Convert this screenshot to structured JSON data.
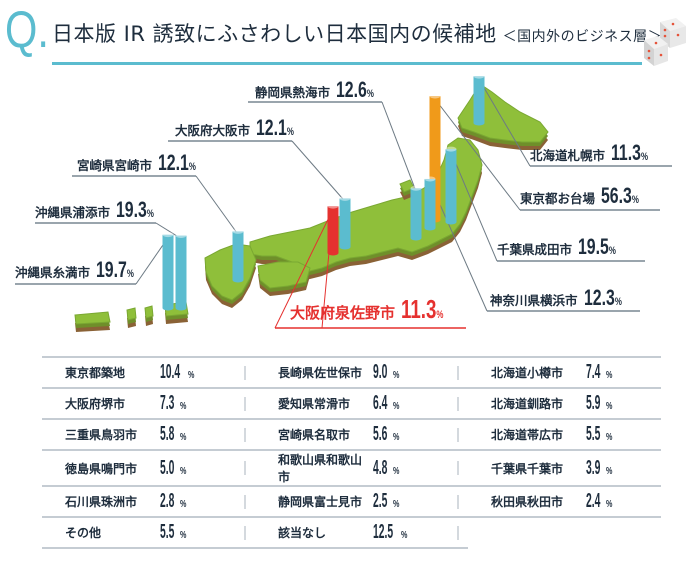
{
  "header": {
    "q_mark": "Q.",
    "title": "日本版 IR 誘致にふさわしい日本国内の候補地",
    "subtitle": "＜国内外のビジネス層＞",
    "dice_icon": "dice-icon",
    "accent_color": "#5bbccf"
  },
  "chart_data": {
    "type": "bar",
    "title": "日本版 IR 誘致にふさわしい日本国内の候補地",
    "subtitle": "＜国内外のビジネス層＞",
    "unit": "%",
    "map_series": [
      {
        "name": "東京都お台場",
        "value": 56.3,
        "display": "56.3",
        "color": "#f09a1a"
      },
      {
        "name": "沖縄県糸満市",
        "value": 19.7,
        "display": "19.7",
        "color": "#5bbccf"
      },
      {
        "name": "千葉県成田市",
        "value": 19.5,
        "display": "19.5",
        "color": "#5bbccf"
      },
      {
        "name": "沖縄県浦添市",
        "value": 19.3,
        "display": "19.3",
        "color": "#5bbccf"
      },
      {
        "name": "静岡県熱海市",
        "value": 12.6,
        "display": "12.6",
        "color": "#5bbccf"
      },
      {
        "name": "神奈川県横浜市",
        "value": 12.3,
        "display": "12.3",
        "color": "#5bbccf"
      },
      {
        "name": "大阪府大阪市",
        "value": 12.1,
        "display": "12.1",
        "color": "#5bbccf"
      },
      {
        "name": "宮崎県宮崎市",
        "value": 12.1,
        "display": "12.1",
        "color": "#5bbccf"
      },
      {
        "name": "北海道札幌市",
        "value": 11.3,
        "display": "11.3",
        "color": "#5bbccf"
      },
      {
        "name": "大阪府泉佐野市",
        "value": 11.3,
        "display": "11.3",
        "color": "#e5312f",
        "highlight": true
      }
    ],
    "table": [
      [
        {
          "name": "東京都築地",
          "value": "10.4"
        },
        {
          "name": "長崎県佐世保市",
          "value": "9.0"
        },
        {
          "name": "北海道小樽市",
          "value": "7.4"
        }
      ],
      [
        {
          "name": "大阪府堺市",
          "value": "7.3"
        },
        {
          "name": "愛知県常滑市",
          "value": "6.4"
        },
        {
          "name": "北海道釧路市",
          "value": "5.9"
        }
      ],
      [
        {
          "name": "三重県鳥羽市",
          "value": "5.8"
        },
        {
          "name": "宮崎県名取市",
          "value": "5.6"
        },
        {
          "name": "北海道帯広市",
          "value": "5.5"
        }
      ],
      [
        {
          "name": "徳島県鳴門市",
          "value": "5.0"
        },
        {
          "name": "和歌山県和歌山市",
          "value": "4.8"
        },
        {
          "name": "千葉県千葉市",
          "value": "3.9"
        }
      ],
      [
        {
          "name": "石川県珠洲市",
          "value": "2.8"
        },
        {
          "name": "静岡県富士見市",
          "value": "2.5"
        },
        {
          "name": "秋田県秋田市",
          "value": "2.4"
        }
      ],
      [
        {
          "name": "その他",
          "value": "5.5"
        },
        {
          "name": "該当なし",
          "value": "12.5"
        }
      ]
    ],
    "pct": "%",
    "colors": {
      "map_top": "#8fbf3a",
      "map_side": "#6f8f2a",
      "map_soil": "#8a6236",
      "text": "#1e2d3d"
    }
  }
}
